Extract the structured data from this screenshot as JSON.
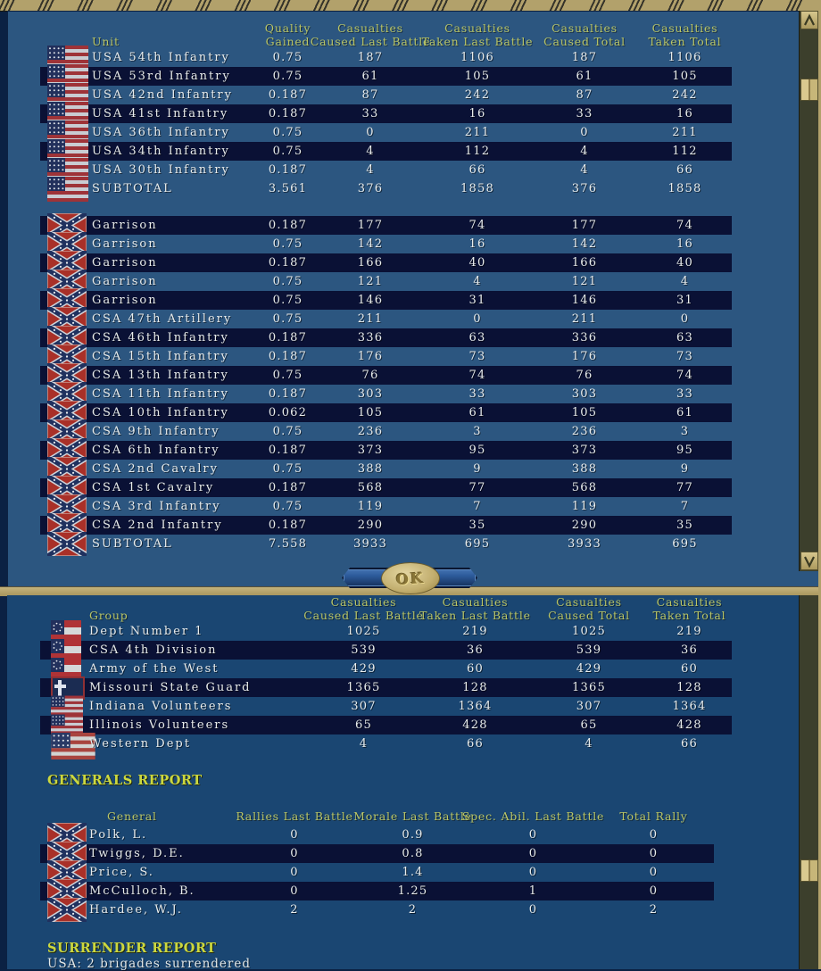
{
  "colors": {
    "panel_upper": "#2c5680",
    "panel_lower": "#1a4672",
    "row_stripe": "#0a1135",
    "header_text": "#b9c566",
    "body_text": "#e8ecec",
    "report_title_text": "#ccd83f",
    "banner_tan": "#b2a16b",
    "scroll_track": "#3c3f2c",
    "ok_oval_tan": "#c2ae6e"
  },
  "icons": {
    "scroll_up": "up-arrow-icon",
    "scroll_down": "down-arrow-icon",
    "usa_flag": "usa-flag-icon",
    "csa_battle_flag": "csa-battle-flag-icon",
    "csa_national_flag": "csa-national-flag-icon",
    "missouri_flag": "missouri-state-guard-flag-icon"
  },
  "unit_table": {
    "headers": {
      "unit": "Unit",
      "quality": [
        "Quality",
        "Gained"
      ],
      "caused_last": [
        "Casualties",
        "Caused Last Battle"
      ],
      "taken_last": [
        "Casualties",
        "Taken Last Battle"
      ],
      "caused_total": [
        "Casualties",
        "Caused Total"
      ],
      "taken_total": [
        "Casualties",
        "Taken Total"
      ]
    },
    "usa_rows": [
      {
        "flag": "usa",
        "name": "USA 54th Infantry",
        "values": [
          "0.75",
          "187",
          "1106",
          "187",
          "1106"
        ],
        "striped": false
      },
      {
        "flag": "usa",
        "name": "USA 53rd Infantry",
        "values": [
          "0.75",
          "61",
          "105",
          "61",
          "105"
        ],
        "striped": true
      },
      {
        "flag": "usa",
        "name": "USA 42nd Infantry",
        "values": [
          "0.187",
          "87",
          "242",
          "87",
          "242"
        ],
        "striped": false
      },
      {
        "flag": "usa",
        "name": "USA 41st Infantry",
        "values": [
          "0.187",
          "33",
          "16",
          "33",
          "16"
        ],
        "striped": true
      },
      {
        "flag": "usa",
        "name": "USA 36th Infantry",
        "values": [
          "0.75",
          "0",
          "211",
          "0",
          "211"
        ],
        "striped": false
      },
      {
        "flag": "usa",
        "name": "USA 34th Infantry",
        "values": [
          "0.75",
          "4",
          "112",
          "4",
          "112"
        ],
        "striped": true
      },
      {
        "flag": "usa",
        "name": "USA 30th Infantry",
        "values": [
          "0.187",
          "4",
          "66",
          "4",
          "66"
        ],
        "striped": false
      },
      {
        "flag": "usa",
        "name": "SUBTOTAL",
        "values": [
          "3.561",
          "376",
          "1858",
          "376",
          "1858"
        ],
        "striped": false
      }
    ],
    "csa_rows": [
      {
        "flag": "csa-battle",
        "name": "Garrison",
        "values": [
          "0.187",
          "177",
          "74",
          "177",
          "74"
        ],
        "striped": true
      },
      {
        "flag": "csa-battle",
        "name": "Garrison",
        "values": [
          "0.75",
          "142",
          "16",
          "142",
          "16"
        ],
        "striped": false
      },
      {
        "flag": "csa-battle",
        "name": "Garrison",
        "values": [
          "0.187",
          "166",
          "40",
          "166",
          "40"
        ],
        "striped": true
      },
      {
        "flag": "csa-battle",
        "name": "Garrison",
        "values": [
          "0.75",
          "121",
          "4",
          "121",
          "4"
        ],
        "striped": false
      },
      {
        "flag": "csa-battle",
        "name": "Garrison",
        "values": [
          "0.75",
          "146",
          "31",
          "146",
          "31"
        ],
        "striped": true
      },
      {
        "flag": "csa-battle",
        "name": "CSA 47th Artillery",
        "values": [
          "0.75",
          "211",
          "0",
          "211",
          "0"
        ],
        "striped": false
      },
      {
        "flag": "csa-battle",
        "name": "CSA 46th Infantry",
        "values": [
          "0.187",
          "336",
          "63",
          "336",
          "63"
        ],
        "striped": true
      },
      {
        "flag": "csa-battle",
        "name": "CSA 15th Infantry",
        "values": [
          "0.187",
          "176",
          "73",
          "176",
          "73"
        ],
        "striped": false
      },
      {
        "flag": "csa-battle",
        "name": "CSA 13th Infantry",
        "values": [
          "0.75",
          "76",
          "74",
          "76",
          "74"
        ],
        "striped": true
      },
      {
        "flag": "csa-battle",
        "name": "CSA 11th Infantry",
        "values": [
          "0.187",
          "303",
          "33",
          "303",
          "33"
        ],
        "striped": false
      },
      {
        "flag": "csa-battle",
        "name": "CSA 10th Infantry",
        "values": [
          "0.062",
          "105",
          "61",
          "105",
          "61"
        ],
        "striped": true
      },
      {
        "flag": "csa-battle",
        "name": "CSA 9th Infantry",
        "values": [
          "0.75",
          "236",
          "3",
          "236",
          "3"
        ],
        "striped": false
      },
      {
        "flag": "csa-battle",
        "name": "CSA 6th Infantry",
        "values": [
          "0.187",
          "373",
          "95",
          "373",
          "95"
        ],
        "striped": true
      },
      {
        "flag": "csa-battle",
        "name": "CSA 2nd Cavalry",
        "values": [
          "0.75",
          "388",
          "9",
          "388",
          "9"
        ],
        "striped": false
      },
      {
        "flag": "csa-battle",
        "name": "CSA 1st Cavalry",
        "values": [
          "0.187",
          "568",
          "77",
          "568",
          "77"
        ],
        "striped": true
      },
      {
        "flag": "csa-battle",
        "name": "CSA 3rd Infantry",
        "values": [
          "0.75",
          "119",
          "7",
          "119",
          "7"
        ],
        "striped": false
      },
      {
        "flag": "csa-battle",
        "name": "CSA 2nd Infantry",
        "values": [
          "0.187",
          "290",
          "35",
          "290",
          "35"
        ],
        "striped": true
      },
      {
        "flag": "csa-battle",
        "name": "SUBTOTAL",
        "values": [
          "7.558",
          "3933",
          "695",
          "3933",
          "695"
        ],
        "striped": false
      }
    ]
  },
  "ok_button": {
    "label": "OK"
  },
  "group_table": {
    "headers": {
      "group": "Group",
      "caused_last": [
        "Casualties",
        "Caused Last Battle"
      ],
      "taken_last": [
        "Casualties",
        "Taken Last Battle"
      ],
      "caused_total": [
        "Casualties",
        "Caused Total"
      ],
      "taken_total": [
        "Casualties",
        "Taken Total"
      ]
    },
    "rows": [
      {
        "flag": "csa-national",
        "name": "Dept Number 1",
        "values": [
          "1025",
          "219",
          "1025",
          "219"
        ],
        "striped": false
      },
      {
        "flag": "csa-national",
        "name": "CSA 4th Division",
        "values": [
          "539",
          "36",
          "539",
          "36"
        ],
        "striped": true
      },
      {
        "flag": "csa-national",
        "name": "Army of the West",
        "values": [
          "429",
          "60",
          "429",
          "60"
        ],
        "striped": false
      },
      {
        "flag": "missouri",
        "name": "Missouri State Guard",
        "values": [
          "1365",
          "128",
          "1365",
          "128"
        ],
        "striped": true
      },
      {
        "flag": "usa-small",
        "name": "Indiana Volunteers",
        "values": [
          "307",
          "1364",
          "307",
          "1364"
        ],
        "striped": false
      },
      {
        "flag": "usa-small",
        "name": "Illinois Volunteers",
        "values": [
          "65",
          "428",
          "65",
          "428"
        ],
        "striped": true
      },
      {
        "flag": "usa-large",
        "name": "Western Dept",
        "values": [
          "4",
          "66",
          "4",
          "66"
        ],
        "striped": false
      }
    ]
  },
  "generals_report": {
    "title": "GENERALS REPORT",
    "headers": {
      "general": "General",
      "rallies": "Rallies Last Battle",
      "morale": "Morale Last Battle",
      "spec": "Spec. Abil. Last Battle",
      "total": "Total Rally"
    },
    "rows": [
      {
        "flag": "csa-battle",
        "name": "Polk, L.",
        "values": [
          "0",
          "0.9",
          "0",
          "0"
        ],
        "striped": false
      },
      {
        "flag": "csa-battle",
        "name": "Twiggs, D.E.",
        "values": [
          "0",
          "0.8",
          "0",
          "0"
        ],
        "striped": true
      },
      {
        "flag": "csa-battle",
        "name": "Price, S.",
        "values": [
          "0",
          "1.4",
          "0",
          "0"
        ],
        "striped": false
      },
      {
        "flag": "csa-battle",
        "name": "McCulloch, B.",
        "values": [
          "0",
          "1.25",
          "1",
          "0"
        ],
        "striped": true
      },
      {
        "flag": "csa-battle",
        "name": "Hardee, W.J.",
        "values": [
          "2",
          "2",
          "0",
          "2"
        ],
        "striped": false
      }
    ]
  },
  "surrender_report": {
    "title": "SURRENDER REPORT",
    "line": "USA: 2 brigades surrendered"
  }
}
